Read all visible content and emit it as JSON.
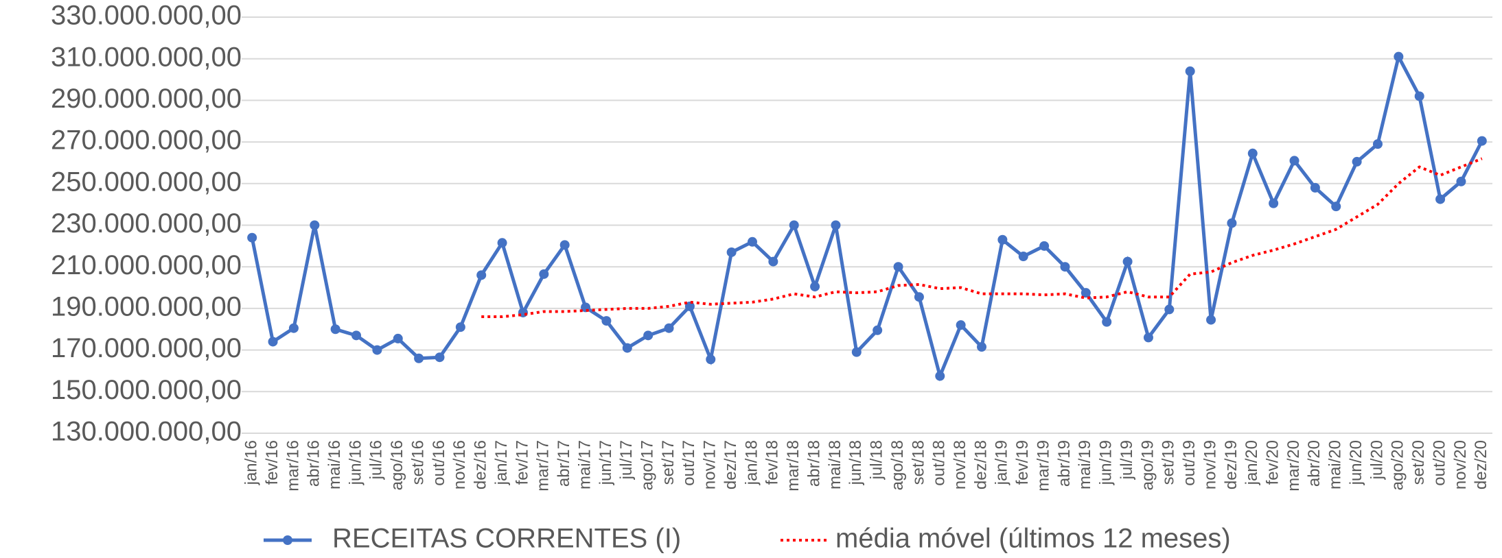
{
  "chart_data": {
    "type": "line",
    "categories": [
      "jan/16",
      "fev/16",
      "mar/16",
      "abr/16",
      "mai/16",
      "jun/16",
      "jul/16",
      "ago/16",
      "set/16",
      "out/16",
      "nov/16",
      "dez/16",
      "jan/17",
      "fev/17",
      "mar/17",
      "abr/17",
      "mai/17",
      "jun/17",
      "jul/17",
      "ago/17",
      "set/17",
      "out/17",
      "nov/17",
      "dez/17",
      "jan/18",
      "fev/18",
      "mar/18",
      "abr/18",
      "mai/18",
      "jun/18",
      "jul/18",
      "ago/18",
      "set/18",
      "out/18",
      "nov/18",
      "dez/18",
      "jan/19",
      "fev/19",
      "mar/19",
      "abr/19",
      "mai/19",
      "jun/19",
      "jul/19",
      "ago/19",
      "set/19",
      "out/19",
      "nov/19",
      "dez/19",
      "jan/20",
      "fev/20",
      "mar/20",
      "abr/20",
      "mai/20",
      "jun/20",
      "jul/20",
      "ago/20",
      "set/20",
      "out/20",
      "nov/20",
      "dez/20"
    ],
    "series": [
      {
        "name": "RECEITAS CORRENTES (I)",
        "color": "#4472c4",
        "values": [
          224000000,
          174000000,
          180500000,
          230000000,
          180000000,
          177000000,
          170000000,
          175500000,
          166000000,
          166500000,
          181000000,
          206000000,
          221500000,
          188000000,
          206500000,
          220500000,
          190500000,
          184000000,
          171000000,
          177000000,
          180500000,
          191000000,
          165500000,
          217000000,
          222000000,
          212500000,
          230000000,
          200500000,
          230000000,
          169000000,
          179500000,
          210000000,
          195500000,
          157500000,
          182000000,
          171500000,
          223000000,
          215000000,
          220000000,
          210000000,
          197500000,
          183500000,
          212500000,
          176000000,
          189500000,
          304000000,
          184500000,
          231000000,
          264500000,
          240500000,
          261000000,
          248000000,
          239000000,
          260500000,
          269000000,
          311000000,
          292000000,
          242500000,
          251000000,
          270500000
        ]
      },
      {
        "name": "média móvel (últimos 12 meses)",
        "color": "#ff0000",
        "values": [
          null,
          null,
          null,
          null,
          null,
          null,
          null,
          null,
          null,
          null,
          null,
          186000000,
          186000000,
          187000000,
          188500000,
          188500000,
          189000000,
          189500000,
          190000000,
          190000000,
          191000000,
          193000000,
          192000000,
          192500000,
          193000000,
          194500000,
          197000000,
          195500000,
          198000000,
          197500000,
          198000000,
          201000000,
          201500000,
          199500000,
          200000000,
          197000000,
          197000000,
          197000000,
          196500000,
          197000000,
          195000000,
          195500000,
          198000000,
          195500000,
          195500000,
          206500000,
          207500000,
          212000000,
          215500000,
          218000000,
          221000000,
          224500000,
          228000000,
          234000000,
          240000000,
          250000000,
          258000000,
          254000000,
          258000000,
          262000000
        ]
      }
    ],
    "ylim": [
      130000000,
      330000000
    ],
    "yticks": [
      {
        "value": 130000000,
        "label": "130.000.000,00"
      },
      {
        "value": 150000000,
        "label": "150.000.000,00"
      },
      {
        "value": 170000000,
        "label": "170.000.000,00"
      },
      {
        "value": 190000000,
        "label": "190.000.000,00"
      },
      {
        "value": 210000000,
        "label": "210.000.000,00"
      },
      {
        "value": 230000000,
        "label": "230.000.000,00"
      },
      {
        "value": 250000000,
        "label": "250.000.000,00"
      },
      {
        "value": 270000000,
        "label": "270.000.000,00"
      },
      {
        "value": 290000000,
        "label": "290.000.000,00"
      },
      {
        "value": 310000000,
        "label": "310.000.000,00"
      },
      {
        "value": 330000000,
        "label": "330.000.000,00"
      }
    ],
    "grid": true,
    "legend": "bottom"
  }
}
